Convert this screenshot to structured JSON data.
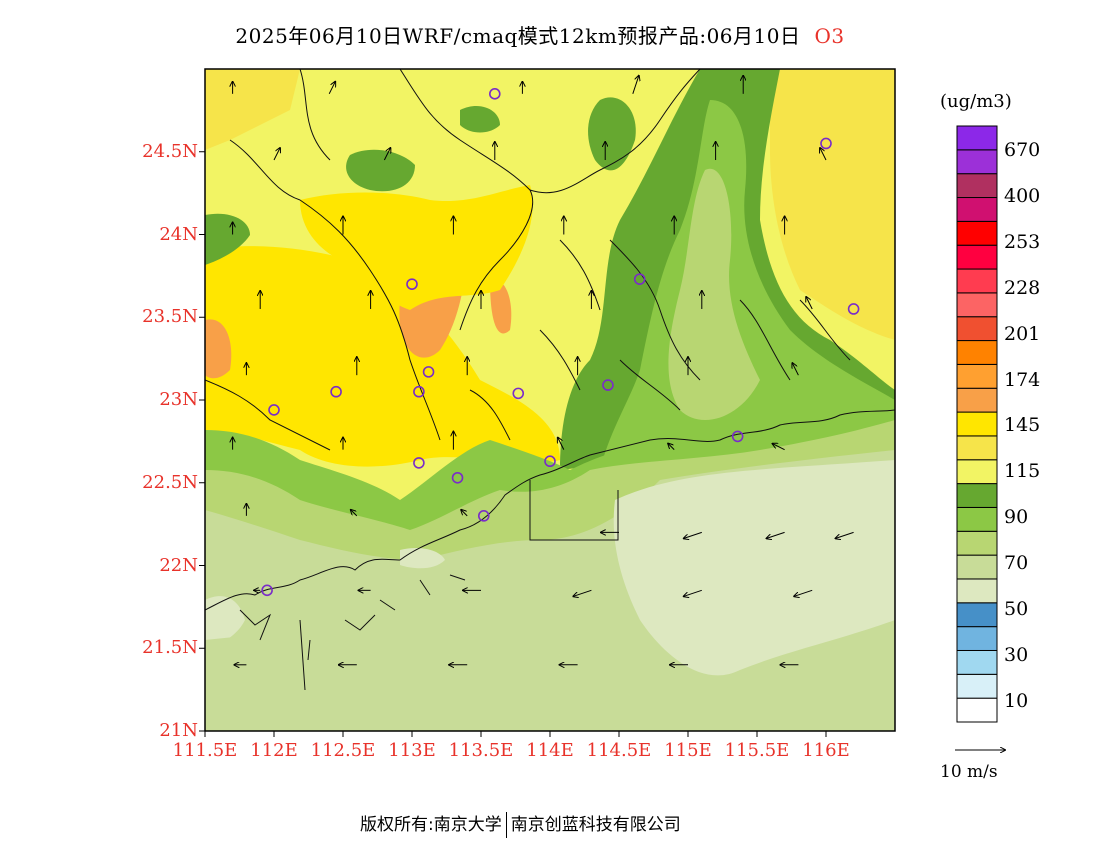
{
  "title": {
    "text": "2025年06月10日WRF/cmaq模式12km预报产品:06月10日",
    "species": "O3"
  },
  "map": {
    "lon_range": [
      111.5,
      116.5
    ],
    "lat_range": [
      21,
      25
    ],
    "lat_ticks": [
      {
        "value": 21,
        "label": "21N"
      },
      {
        "value": 21.5,
        "label": "21.5N"
      },
      {
        "value": 22,
        "label": "22N"
      },
      {
        "value": 22.5,
        "label": "22.5N"
      },
      {
        "value": 23,
        "label": "23N"
      },
      {
        "value": 23.5,
        "label": "23.5N"
      },
      {
        "value": 24,
        "label": "24N"
      },
      {
        "value": 24.5,
        "label": "24.5N"
      }
    ],
    "lon_ticks": [
      {
        "value": 111.5,
        "label": "111.5E"
      },
      {
        "value": 112,
        "label": "112E"
      },
      {
        "value": 112.5,
        "label": "112.5E"
      },
      {
        "value": 113,
        "label": "113E"
      },
      {
        "value": 113.5,
        "label": "113.5E"
      },
      {
        "value": 114,
        "label": "114E"
      },
      {
        "value": 114.5,
        "label": "114.5E"
      },
      {
        "value": 115,
        "label": "115E"
      },
      {
        "value": 115.5,
        "label": "115.5E"
      },
      {
        "value": 116,
        "label": "116E"
      }
    ],
    "axis_label_color": "#e8322a",
    "stations": [
      {
        "lon": 113.6,
        "lat": 24.85
      },
      {
        "lon": 116.0,
        "lat": 24.55
      },
      {
        "lon": 113.0,
        "lat": 23.7
      },
      {
        "lon": 114.65,
        "lat": 23.73
      },
      {
        "lon": 116.2,
        "lat": 23.55
      },
      {
        "lon": 112.45,
        "lat": 23.05
      },
      {
        "lon": 113.05,
        "lat": 23.05
      },
      {
        "lon": 113.12,
        "lat": 23.17
      },
      {
        "lon": 113.77,
        "lat": 23.04
      },
      {
        "lon": 114.42,
        "lat": 23.09
      },
      {
        "lon": 112.0,
        "lat": 22.94
      },
      {
        "lon": 115.36,
        "lat": 22.78
      },
      {
        "lon": 113.05,
        "lat": 22.62
      },
      {
        "lon": 113.33,
        "lat": 22.53
      },
      {
        "lon": 114.0,
        "lat": 22.63
      },
      {
        "lon": 113.52,
        "lat": 22.3
      },
      {
        "lon": 111.95,
        "lat": 21.85
      }
    ],
    "winds": [
      {
        "lon": 111.7,
        "lat": 24.85,
        "u": 0,
        "v": 2
      },
      {
        "lon": 112.4,
        "lat": 24.85,
        "u": 1,
        "v": 2
      },
      {
        "lon": 113.8,
        "lat": 24.85,
        "u": 0,
        "v": 2
      },
      {
        "lon": 114.6,
        "lat": 24.85,
        "u": 1,
        "v": 3
      },
      {
        "lon": 115.4,
        "lat": 24.85,
        "u": 0,
        "v": 3
      },
      {
        "lon": 112.0,
        "lat": 24.45,
        "u": 1,
        "v": 2
      },
      {
        "lon": 112.8,
        "lat": 24.45,
        "u": 1,
        "v": 2
      },
      {
        "lon": 113.6,
        "lat": 24.45,
        "u": 0,
        "v": 3
      },
      {
        "lon": 114.4,
        "lat": 24.45,
        "u": 0,
        "v": 3
      },
      {
        "lon": 115.2,
        "lat": 24.45,
        "u": 0,
        "v": 3
      },
      {
        "lon": 116.0,
        "lat": 24.45,
        "u": -1,
        "v": 2
      },
      {
        "lon": 111.7,
        "lat": 24.0,
        "u": 0,
        "v": 2
      },
      {
        "lon": 112.5,
        "lat": 24.0,
        "u": 0,
        "v": 3
      },
      {
        "lon": 113.3,
        "lat": 24.0,
        "u": 0,
        "v": 3
      },
      {
        "lon": 114.1,
        "lat": 24.0,
        "u": 0,
        "v": 3
      },
      {
        "lon": 114.9,
        "lat": 24.0,
        "u": 0,
        "v": 3
      },
      {
        "lon": 115.7,
        "lat": 24.0,
        "u": 0,
        "v": 3
      },
      {
        "lon": 111.9,
        "lat": 23.55,
        "u": 0,
        "v": 3
      },
      {
        "lon": 112.7,
        "lat": 23.55,
        "u": 0,
        "v": 3
      },
      {
        "lon": 113.5,
        "lat": 23.55,
        "u": 0,
        "v": 3
      },
      {
        "lon": 114.3,
        "lat": 23.55,
        "u": 0,
        "v": 3
      },
      {
        "lon": 115.1,
        "lat": 23.55,
        "u": 0,
        "v": 3
      },
      {
        "lon": 115.9,
        "lat": 23.55,
        "u": -1,
        "v": 2
      },
      {
        "lon": 111.8,
        "lat": 23.15,
        "u": 0,
        "v": 2
      },
      {
        "lon": 112.6,
        "lat": 23.15,
        "u": 0,
        "v": 3
      },
      {
        "lon": 113.4,
        "lat": 23.15,
        "u": 0,
        "v": 3
      },
      {
        "lon": 114.2,
        "lat": 23.15,
        "u": 0,
        "v": 3
      },
      {
        "lon": 115.0,
        "lat": 23.15,
        "u": 0,
        "v": 3
      },
      {
        "lon": 115.8,
        "lat": 23.15,
        "u": -1,
        "v": 2
      },
      {
        "lon": 111.7,
        "lat": 22.7,
        "u": 0,
        "v": 2
      },
      {
        "lon": 112.5,
        "lat": 22.7,
        "u": 0,
        "v": 2
      },
      {
        "lon": 113.3,
        "lat": 22.7,
        "u": 0,
        "v": 3
      },
      {
        "lon": 114.1,
        "lat": 22.7,
        "u": -1,
        "v": 2
      },
      {
        "lon": 114.9,
        "lat": 22.7,
        "u": -1,
        "v": 1
      },
      {
        "lon": 115.7,
        "lat": 22.7,
        "u": -2,
        "v": 1
      },
      {
        "lon": 111.8,
        "lat": 22.3,
        "u": 0,
        "v": 2
      },
      {
        "lon": 112.6,
        "lat": 22.3,
        "u": -1,
        "v": 1
      },
      {
        "lon": 113.4,
        "lat": 22.3,
        "u": -1,
        "v": 1
      },
      {
        "lon": 114.5,
        "lat": 22.2,
        "u": -3,
        "v": 0
      },
      {
        "lon": 115.1,
        "lat": 22.2,
        "u": -3,
        "v": -1
      },
      {
        "lon": 115.7,
        "lat": 22.2,
        "u": -3,
        "v": -1
      },
      {
        "lon": 116.2,
        "lat": 22.2,
        "u": -3,
        "v": -1
      },
      {
        "lon": 111.9,
        "lat": 21.85,
        "u": -1,
        "v": 0
      },
      {
        "lon": 112.7,
        "lat": 21.85,
        "u": -2,
        "v": 0
      },
      {
        "lon": 113.5,
        "lat": 21.85,
        "u": -3,
        "v": 0
      },
      {
        "lon": 114.3,
        "lat": 21.85,
        "u": -3,
        "v": -1
      },
      {
        "lon": 115.1,
        "lat": 21.85,
        "u": -3,
        "v": -1
      },
      {
        "lon": 115.9,
        "lat": 21.85,
        "u": -3,
        "v": -1
      },
      {
        "lon": 111.8,
        "lat": 21.4,
        "u": -2,
        "v": 0
      },
      {
        "lon": 112.6,
        "lat": 21.4,
        "u": -3,
        "v": 0
      },
      {
        "lon": 113.4,
        "lat": 21.4,
        "u": -3,
        "v": 0
      },
      {
        "lon": 114.2,
        "lat": 21.4,
        "u": -3,
        "v": 0
      },
      {
        "lon": 115.0,
        "lat": 21.4,
        "u": -3,
        "v": 0
      },
      {
        "lon": 115.8,
        "lat": 21.4,
        "u": -3,
        "v": 0
      }
    ]
  },
  "colorbar": {
    "unit": "(ug/m3)",
    "colors": [
      "#ffffff",
      "#d8f0f8",
      "#a0d8f0",
      "#70b4e0",
      "#4690c8",
      "#dde8c0",
      "#c8dc98",
      "#b8d672",
      "#8cc845",
      "#66a830",
      "#f2f464",
      "#f6e44a",
      "#ffe600",
      "#f8a048",
      "#ffa030",
      "#ff8200",
      "#f05030",
      "#fc6464",
      "#ff3c50",
      "#ff0040",
      "#ff0000",
      "#d01070",
      "#b03060",
      "#9c30d8",
      "#8c28e8"
    ],
    "labels": [
      {
        "value": 10,
        "text": "10"
      },
      {
        "value": 30,
        "text": "30"
      },
      {
        "value": 50,
        "text": "50"
      },
      {
        "value": 70,
        "text": "70"
      },
      {
        "value": 90,
        "text": "90"
      },
      {
        "value": 115,
        "text": "115"
      },
      {
        "value": 145,
        "text": "145"
      },
      {
        "value": 174,
        "text": "174"
      },
      {
        "value": 201,
        "text": "201"
      },
      {
        "value": 228,
        "text": "228"
      },
      {
        "value": 253,
        "text": "253"
      },
      {
        "value": 400,
        "text": "400"
      },
      {
        "value": 670,
        "text": "670"
      }
    ]
  },
  "wind_reference": {
    "label": "10 m/s",
    "speed": 10
  },
  "footer": {
    "left": "版权所有:南京大学",
    "right": "南京创蓝科技有限公司"
  }
}
